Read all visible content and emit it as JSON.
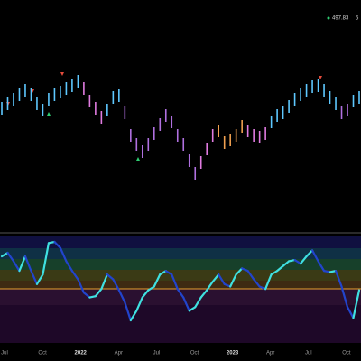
{
  "chart_data": {
    "type": "bar",
    "price_label": "497.83",
    "price_label_2": "5",
    "x_labels": [
      "Jul",
      "Oct",
      "2022",
      "Apr",
      "Jul",
      "Oct",
      "2023",
      "Apr",
      "Jul",
      "Oct"
    ],
    "high": [
      457,
      462,
      467,
      472,
      477,
      472,
      462,
      455,
      467,
      472,
      475,
      479,
      482,
      487,
      479,
      465,
      457,
      447,
      455,
      469,
      471,
      452,
      427,
      417,
      409,
      417,
      429,
      439,
      449,
      442,
      427,
      417,
      399,
      385,
      397,
      412,
      427,
      432,
      419,
      422,
      427,
      437,
      432,
      427,
      425,
      429,
      442,
      449,
      452,
      459,
      467,
      472,
      477,
      481,
      482,
      477,
      469,
      462,
      452,
      455,
      465,
      469
    ],
    "low": [
      443,
      448,
      453,
      458,
      463,
      458,
      448,
      441,
      453,
      458,
      461,
      465,
      468,
      473,
      465,
      451,
      443,
      433,
      441,
      455,
      457,
      438,
      413,
      403,
      395,
      403,
      415,
      425,
      435,
      428,
      413,
      403,
      385,
      371,
      383,
      398,
      413,
      418,
      405,
      408,
      413,
      423,
      418,
      413,
      411,
      415,
      428,
      435,
      438,
      445,
      453,
      458,
      463,
      467,
      468,
      463,
      455,
      448,
      438,
      441,
      451,
      455
    ],
    "colors": [
      "#5ec8ff",
      "#5ec8ff",
      "#5ec8ff",
      "#5ec8ff",
      "#5ec8ff",
      "#5ec8ff",
      "#5ec8ff",
      "#5ec8ff",
      "#5ec8ff",
      "#5ec8ff",
      "#5ec8ff",
      "#5ec8ff",
      "#5ec8ff",
      "#5ec8ff",
      "#e07be0",
      "#e07be0",
      "#e07be0",
      "#e07be0",
      "#5ec8ff",
      "#5ec8ff",
      "#5ec8ff",
      "#b070e0",
      "#b070e0",
      "#b070e0",
      "#b070e0",
      "#b070e0",
      "#b070e0",
      "#b070e0",
      "#b070e0",
      "#b070e0",
      "#b070e0",
      "#b070e0",
      "#b070e0",
      "#b070e0",
      "#e07be0",
      "#e07be0",
      "#e07be0",
      "#f0a050",
      "#f0a050",
      "#f0a050",
      "#f0a050",
      "#f0a050",
      "#e07be0",
      "#e07be0",
      "#e07be0",
      "#e07be0",
      "#5ec8ff",
      "#5ec8ff",
      "#5ec8ff",
      "#5ec8ff",
      "#5ec8ff",
      "#5ec8ff",
      "#5ec8ff",
      "#5ec8ff",
      "#5ec8ff",
      "#5ec8ff",
      "#5ec8ff",
      "#5ec8ff",
      "#b070e0",
      "#b070e0",
      "#5ec8ff",
      "#5ec8ff"
    ],
    "oscillator": [
      83,
      86,
      79,
      71,
      83,
      71,
      60,
      68,
      94,
      95,
      90,
      79,
      71,
      64,
      53,
      49,
      50,
      56,
      68,
      64,
      55,
      45,
      30,
      38,
      49,
      55,
      58,
      68,
      71,
      68,
      56,
      49,
      38,
      41,
      49,
      55,
      62,
      68,
      60,
      58,
      68,
      73,
      71,
      64,
      58,
      56,
      68,
      71,
      75,
      79,
      80,
      77,
      83,
      88,
      79,
      71,
      70,
      71,
      58,
      41,
      32,
      55
    ],
    "up_color": "#3fe0e0",
    "down_color": "#2244cc"
  }
}
